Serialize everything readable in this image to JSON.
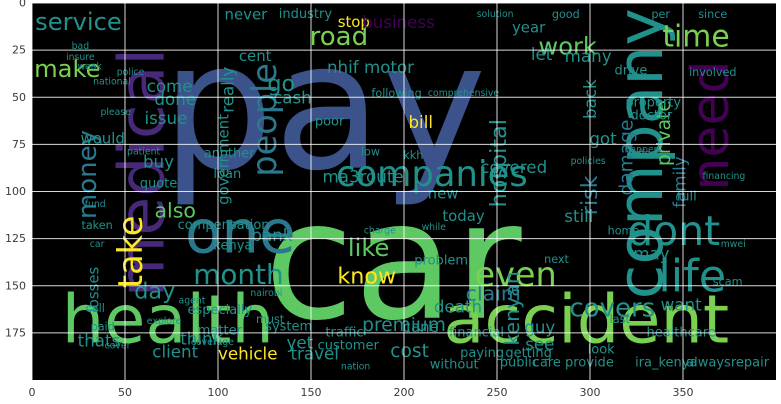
{
  "chart_data": {
    "type": "wordcloud-image",
    "xlim": [
      0,
      400
    ],
    "ylim": [
      200,
      0
    ],
    "xticks": [
      0,
      50,
      100,
      150,
      200,
      250,
      300,
      350
    ],
    "yticks": [
      0,
      25,
      50,
      75,
      100,
      125,
      150,
      175
    ],
    "grid": true,
    "colors": {
      "background": "#000000",
      "palette": [
        "#3b528b",
        "#21918c",
        "#5ec962",
        "#440154",
        "#7ad151",
        "#fde725",
        "#2a788e",
        "#482878"
      ]
    },
    "words": [
      {
        "text": "pay",
        "x": 157,
        "y": 55,
        "size": 95,
        "color": "#3b528b"
      },
      {
        "text": "car",
        "x": 194,
        "y": 137,
        "size": 88,
        "color": "#5ec962"
      },
      {
        "text": "health",
        "x": 73,
        "y": 168,
        "size": 36,
        "color": "#5ec962"
      },
      {
        "text": "accident",
        "x": 298,
        "y": 168,
        "size": 36,
        "color": "#7ad151"
      },
      {
        "text": "medical",
        "x": 59,
        "y": 90,
        "size": 34,
        "color": "#482878",
        "rotate": -90
      },
      {
        "text": "company",
        "x": 327,
        "y": 80,
        "size": 34,
        "color": "#21918c",
        "rotate": -90
      },
      {
        "text": "one",
        "x": 112,
        "y": 122,
        "size": 32,
        "color": "#2a788e"
      },
      {
        "text": "need",
        "x": 365,
        "y": 65,
        "size": 28,
        "color": "#440154",
        "rotate": -90
      },
      {
        "text": "dont",
        "x": 345,
        "y": 121,
        "size": 22,
        "color": "#21918c"
      },
      {
        "text": "life",
        "x": 355,
        "y": 145,
        "size": 24,
        "color": "#21918c"
      },
      {
        "text": "companies",
        "x": 215,
        "y": 91,
        "size": 19,
        "color": "#21918c"
      },
      {
        "text": "people",
        "x": 125,
        "y": 62,
        "size": 18,
        "color": "#2a788e",
        "rotate": -90
      },
      {
        "text": "money",
        "x": 30,
        "y": 91,
        "size": 14,
        "color": "#2a788e",
        "rotate": -90
      },
      {
        "text": "take",
        "x": 53,
        "y": 132,
        "size": 18,
        "color": "#fde725",
        "rotate": -90
      },
      {
        "text": "service",
        "x": 25,
        "y": 10,
        "size": 13,
        "color": "#21918c"
      },
      {
        "text": "make",
        "x": 19,
        "y": 35,
        "size": 13,
        "color": "#7ad151"
      },
      {
        "text": "road",
        "x": 165,
        "y": 18,
        "size": 14,
        "color": "#7ad151"
      },
      {
        "text": "time",
        "x": 357,
        "y": 18,
        "size": 16,
        "color": "#7ad151"
      },
      {
        "text": "work",
        "x": 288,
        "y": 23,
        "size": 13,
        "color": "#5ec962"
      },
      {
        "text": "even",
        "x": 260,
        "y": 144,
        "size": 18,
        "color": "#7ad151"
      },
      {
        "text": "month",
        "x": 111,
        "y": 144,
        "size": 15,
        "color": "#21918c"
      },
      {
        "text": "know",
        "x": 180,
        "y": 145,
        "size": 12,
        "color": "#fde725"
      },
      {
        "text": "like",
        "x": 181,
        "y": 130,
        "size": 13,
        "color": "#5ec962"
      },
      {
        "text": "covers",
        "x": 312,
        "y": 162,
        "size": 14,
        "color": "#21918c"
      },
      {
        "text": "hospital",
        "x": 251,
        "y": 85,
        "size": 12,
        "color": "#21918c",
        "rotate": -90
      },
      {
        "text": "kenyan",
        "x": 258,
        "y": 162,
        "size": 11,
        "color": "#21918c",
        "rotate": -90
      },
      {
        "text": "claim",
        "x": 248,
        "y": 154,
        "size": 11,
        "color": "#2a788e"
      },
      {
        "text": "risk",
        "x": 300,
        "y": 102,
        "size": 12,
        "color": "#2a788e",
        "rotate": -90
      },
      {
        "text": "damage",
        "x": 320,
        "y": 82,
        "size": 10,
        "color": "#2a788e",
        "rotate": -90
      },
      {
        "text": "private",
        "x": 340,
        "y": 69,
        "size": 10,
        "color": "#5ec962",
        "rotate": -90
      },
      {
        "text": "family",
        "x": 348,
        "y": 95,
        "size": 9,
        "color": "#2a788e",
        "rotate": -90
      },
      {
        "text": "also",
        "x": 77,
        "y": 110,
        "size": 11,
        "color": "#5ec962"
      },
      {
        "text": "go",
        "x": 134,
        "y": 43,
        "size": 12,
        "color": "#21918c"
      },
      {
        "text": "day",
        "x": 66,
        "y": 153,
        "size": 12,
        "color": "#21918c"
      },
      {
        "text": "premium",
        "x": 200,
        "y": 171,
        "size": 10,
        "color": "#21918c"
      },
      {
        "text": "nhif motor",
        "x": 182,
        "y": 34,
        "size": 9,
        "color": "#21918c"
      },
      {
        "text": "ma3route",
        "x": 178,
        "y": 92,
        "size": 9,
        "color": "#21918c"
      },
      {
        "text": "bill",
        "x": 209,
        "y": 63,
        "size": 9,
        "color": "#fde725"
      },
      {
        "text": "stop",
        "x": 173,
        "y": 10,
        "size": 8,
        "color": "#fde725"
      },
      {
        "text": "cash",
        "x": 140,
        "y": 50,
        "size": 9,
        "color": "#21918c"
      },
      {
        "text": "come",
        "x": 74,
        "y": 44,
        "size": 9,
        "color": "#21918c"
      },
      {
        "text": "done",
        "x": 77,
        "y": 51,
        "size": 9,
        "color": "#21918c"
      },
      {
        "text": "issue",
        "x": 72,
        "y": 61,
        "size": 9,
        "color": "#21918c"
      },
      {
        "text": "buy",
        "x": 68,
        "y": 84,
        "size": 9,
        "color": "#21918c"
      },
      {
        "text": "bank",
        "x": 129,
        "y": 123,
        "size": 9,
        "color": "#21918c"
      },
      {
        "text": "new",
        "x": 221,
        "y": 101,
        "size": 8,
        "color": "#21918c"
      },
      {
        "text": "today",
        "x": 232,
        "y": 113,
        "size": 8,
        "color": "#21918c"
      },
      {
        "text": "death",
        "x": 229,
        "y": 161,
        "size": 9,
        "color": "#21918c"
      },
      {
        "text": "guy",
        "x": 273,
        "y": 172,
        "size": 9,
        "color": "#21918c"
      },
      {
        "text": "see",
        "x": 273,
        "y": 181,
        "size": 9,
        "color": "#21918c"
      },
      {
        "text": "want",
        "x": 349,
        "y": 160,
        "size": 9,
        "color": "#21918c"
      },
      {
        "text": "many",
        "x": 299,
        "y": 28,
        "size": 9,
        "color": "#21918c"
      },
      {
        "text": "let",
        "x": 274,
        "y": 27,
        "size": 9,
        "color": "#21918c"
      },
      {
        "text": "back",
        "x": 300,
        "y": 51,
        "size": 9,
        "color": "#21918c",
        "rotate": -90
      },
      {
        "text": "got",
        "x": 307,
        "y": 72,
        "size": 9,
        "color": "#21918c"
      },
      {
        "text": "covered",
        "x": 259,
        "y": 87,
        "size": 9,
        "color": "#21918c"
      },
      {
        "text": "may",
        "x": 333,
        "y": 133,
        "size": 9,
        "color": "#21918c"
      },
      {
        "text": "still",
        "x": 294,
        "y": 113,
        "size": 9,
        "color": "#21918c"
      },
      {
        "text": "year",
        "x": 267,
        "y": 13,
        "size": 8,
        "color": "#21918c"
      },
      {
        "text": "business",
        "x": 197,
        "y": 10,
        "size": 9,
        "color": "#440154"
      },
      {
        "text": "really",
        "x": 105,
        "y": 46,
        "size": 9,
        "color": "#21918c",
        "rotate": -90
      },
      {
        "text": "government",
        "x": 103,
        "y": 83,
        "size": 8,
        "color": "#21918c",
        "rotate": -90
      },
      {
        "text": "never",
        "x": 115,
        "y": 6,
        "size": 8,
        "color": "#21918c"
      },
      {
        "text": "would",
        "x": 38,
        "y": 72,
        "size": 8,
        "color": "#21918c"
      },
      {
        "text": "losses",
        "x": 33,
        "y": 152,
        "size": 8,
        "color": "#21918c",
        "rotate": -90
      },
      {
        "text": "thats",
        "x": 36,
        "y": 179,
        "size": 9,
        "color": "#21918c"
      },
      {
        "text": "client",
        "x": 77,
        "y": 185,
        "size": 9,
        "color": "#21918c"
      },
      {
        "text": "think",
        "x": 91,
        "y": 178,
        "size": 9,
        "color": "#21918c"
      },
      {
        "text": "vehicle",
        "x": 116,
        "y": 186,
        "size": 9,
        "color": "#fde725"
      },
      {
        "text": "travel",
        "x": 152,
        "y": 186,
        "size": 9,
        "color": "#21918c"
      },
      {
        "text": "yet",
        "x": 144,
        "y": 180,
        "size": 9,
        "color": "#21918c"
      },
      {
        "text": "cost",
        "x": 203,
        "y": 185,
        "size": 10,
        "color": "#21918c"
      },
      {
        "text": "cane",
        "x": 209,
        "y": 172,
        "size": 8,
        "color": "#21918c"
      },
      {
        "text": "traffic",
        "x": 168,
        "y": 175,
        "size": 7,
        "color": "#21918c"
      },
      {
        "text": "system",
        "x": 138,
        "y": 172,
        "size": 7,
        "color": "#21918c"
      },
      {
        "text": "matter",
        "x": 101,
        "y": 174,
        "size": 7,
        "color": "#21918c"
      },
      {
        "text": "especially",
        "x": 101,
        "y": 163,
        "size": 7,
        "color": "#21918c"
      },
      {
        "text": "compensation",
        "x": 103,
        "y": 118,
        "size": 7,
        "color": "#21918c"
      },
      {
        "text": "kenya",
        "x": 108,
        "y": 129,
        "size": 7,
        "color": "#21918c"
      },
      {
        "text": "another",
        "x": 106,
        "y": 80,
        "size": 7,
        "color": "#21918c"
      },
      {
        "text": "loan",
        "x": 105,
        "y": 91,
        "size": 7,
        "color": "#21918c"
      },
      {
        "text": "quote",
        "x": 68,
        "y": 96,
        "size": 7,
        "color": "#21918c"
      },
      {
        "text": "problem",
        "x": 220,
        "y": 137,
        "size": 7,
        "color": "#21918c"
      },
      {
        "text": "financial",
        "x": 239,
        "y": 175,
        "size": 7,
        "color": "#21918c"
      },
      {
        "text": "paying",
        "x": 242,
        "y": 186,
        "size": 7,
        "color": "#21918c"
      },
      {
        "text": "without",
        "x": 227,
        "y": 192,
        "size": 7,
        "color": "#21918c"
      },
      {
        "text": "public",
        "x": 262,
        "y": 191,
        "size": 7,
        "color": "#21918c"
      },
      {
        "text": "care provide",
        "x": 291,
        "y": 191,
        "size": 7,
        "color": "#21918c"
      },
      {
        "text": "look",
        "x": 306,
        "y": 184,
        "size": 7,
        "color": "#21918c"
      },
      {
        "text": "ira_kenya",
        "x": 341,
        "y": 191,
        "size": 7,
        "color": "#21918c"
      },
      {
        "text": "alwaysrepair",
        "x": 374,
        "y": 191,
        "size": 7,
        "color": "#21918c"
      },
      {
        "text": "healthcare",
        "x": 349,
        "y": 175,
        "size": 7,
        "color": "#21918c"
      },
      {
        "text": "getting",
        "x": 267,
        "y": 186,
        "size": 7,
        "color": "#21918c"
      },
      {
        "text": "customer",
        "x": 170,
        "y": 182,
        "size": 7,
        "color": "#21918c"
      },
      {
        "text": "full",
        "x": 352,
        "y": 103,
        "size": 7,
        "color": "#21918c"
      },
      {
        "text": "industry",
        "x": 147,
        "y": 6,
        "size": 7,
        "color": "#21918c"
      },
      {
        "text": "poor",
        "x": 160,
        "y": 63,
        "size": 7,
        "color": "#21918c"
      },
      {
        "text": "drive",
        "x": 322,
        "y": 36,
        "size": 7,
        "color": "#21918c"
      },
      {
        "text": "property",
        "x": 334,
        "y": 53,
        "size": 7,
        "color": "#21918c"
      },
      {
        "text": "doctor",
        "x": 333,
        "y": 60,
        "size": 7,
        "color": "#21918c"
      },
      {
        "text": "cent",
        "x": 120,
        "y": 28,
        "size": 8,
        "color": "#21918c"
      },
      {
        "text": "home",
        "x": 318,
        "y": 121,
        "size": 6,
        "color": "#21918c"
      },
      {
        "text": "next",
        "x": 282,
        "y": 136,
        "size": 6,
        "color": "#21918c"
      },
      {
        "text": "last",
        "x": 316,
        "y": 168,
        "size": 6,
        "color": "#21918c"
      },
      {
        "text": "scam",
        "x": 374,
        "y": 148,
        "size": 6,
        "color": "#21918c"
      },
      {
        "text": "call",
        "x": 34,
        "y": 162,
        "size": 6,
        "color": "#21918c"
      },
      {
        "text": "paid",
        "x": 38,
        "y": 172,
        "size": 6,
        "color": "#21918c"
      },
      {
        "text": "taken",
        "x": 35,
        "y": 118,
        "size": 6,
        "color": "#21918c"
      },
      {
        "text": "must",
        "x": 128,
        "y": 168,
        "size": 6,
        "color": "#21918c"
      },
      {
        "text": "low",
        "x": 182,
        "y": 79,
        "size": 6,
        "color": "#21918c"
      },
      {
        "text": "kkh",
        "x": 205,
        "y": 81,
        "size": 6,
        "color": "#21918c"
      },
      {
        "text": "since",
        "x": 366,
        "y": 6,
        "size": 6,
        "color": "#21918c"
      },
      {
        "text": "per",
        "x": 338,
        "y": 6,
        "size": 6,
        "color": "#21918c"
      },
      {
        "text": "good",
        "x": 287,
        "y": 6,
        "size": 6,
        "color": "#21918c"
      },
      {
        "text": "involved",
        "x": 366,
        "y": 37,
        "size": 6,
        "color": "#21918c"
      },
      {
        "text": "following",
        "x": 196,
        "y": 48,
        "size": 6,
        "color": "#21918c"
      },
      {
        "text": "comprehensive",
        "x": 232,
        "y": 48,
        "size": 5,
        "color": "#21918c"
      },
      {
        "text": "affect",
        "x": 330,
        "y": 80,
        "size": 5,
        "color": "#21918c"
      },
      {
        "text": "coverage",
        "x": 97,
        "y": 180,
        "size": 5,
        "color": "#21918c"
      },
      {
        "text": "agent",
        "x": 86,
        "y": 158,
        "size": 5,
        "color": "#21918c"
      },
      {
        "text": "charge",
        "x": 187,
        "y": 121,
        "size": 5,
        "color": "#21918c"
      },
      {
        "text": "while",
        "x": 216,
        "y": 119,
        "size": 5,
        "color": "#21918c"
      },
      {
        "text": "patient",
        "x": 60,
        "y": 79,
        "size": 5,
        "color": "#21918c"
      },
      {
        "text": "financing",
        "x": 372,
        "y": 92,
        "size": 5,
        "color": "#21918c"
      },
      {
        "text": "policies",
        "x": 299,
        "y": 84,
        "size": 5,
        "color": "#21918c"
      },
      {
        "text": "explore",
        "x": 71,
        "y": 169,
        "size": 5,
        "color": "#21918c"
      },
      {
        "text": "solution",
        "x": 249,
        "y": 6,
        "size": 5,
        "color": "#21918c"
      },
      {
        "text": "weak",
        "x": 31,
        "y": 34,
        "size": 5,
        "color": "#21918c"
      },
      {
        "text": "police",
        "x": 53,
        "y": 37,
        "size": 5,
        "color": "#21918c"
      },
      {
        "text": "national",
        "x": 43,
        "y": 42,
        "size": 5,
        "color": "#21918c"
      },
      {
        "text": "please",
        "x": 45,
        "y": 58,
        "size": 5,
        "color": "#21918c"
      },
      {
        "text": "insure",
        "x": 26,
        "y": 29,
        "size": 5,
        "color": "#21918c"
      },
      {
        "text": "bad",
        "x": 26,
        "y": 23,
        "size": 5,
        "color": "#21918c"
      },
      {
        "text": "fund",
        "x": 34,
        "y": 107,
        "size": 5,
        "color": "#21918c"
      },
      {
        "text": "car",
        "x": 35,
        "y": 128,
        "size": 5,
        "color": "#21918c"
      },
      {
        "text": "nairobi",
        "x": 126,
        "y": 154,
        "size": 5,
        "color": "#21918c"
      },
      {
        "text": "cover",
        "x": 46,
        "y": 182,
        "size": 5,
        "color": "#21918c"
      },
      {
        "text": "nation",
        "x": 174,
        "y": 193,
        "size": 5,
        "color": "#21918c"
      },
      {
        "text": "mwei",
        "x": 377,
        "y": 128,
        "size": 5,
        "color": "#21918c"
      },
      {
        "text": "happen",
        "x": 328,
        "y": 78,
        "size": 5,
        "color": "#21918c"
      }
    ]
  }
}
